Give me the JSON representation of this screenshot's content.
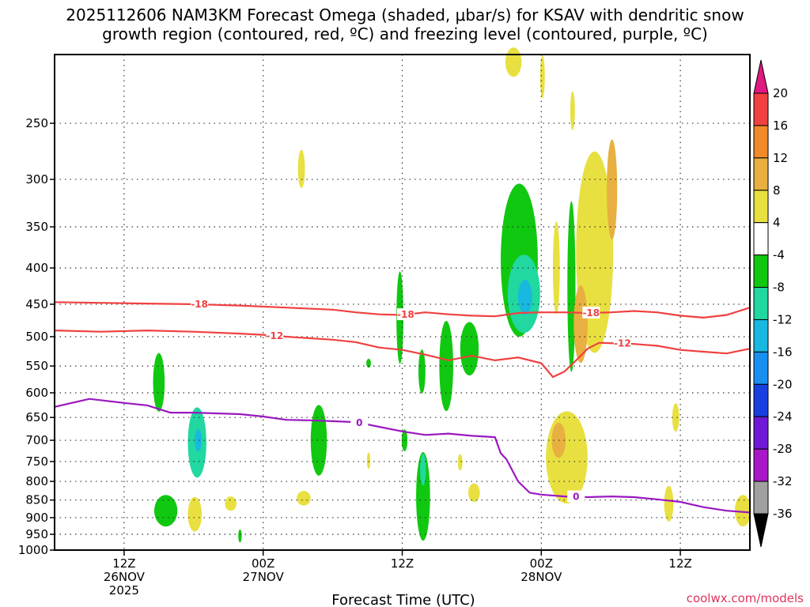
{
  "chart_data": {
    "type": "heatmap",
    "title": "2025112606 NAM3KM Forecast Omega (shaded, μbar/s) for KSAV with dendritic snow growth region (contoured, red, ºC) and freezing level (contoured, purple, ºC)",
    "title_lines": [
      "2025112606 NAM3KM Forecast Omega (shaded, μbar/s) for KSAV with dendritic snow",
      "growth region (contoured, red, ºC) and freezing level (contoured, purple, ºC)"
    ],
    "xlabel": "Forecast Time (UTC)",
    "credit": "coolwx.com/models",
    "x_range_hours": [
      0,
      60
    ],
    "y_scale": "log",
    "y_range_hpa": [
      1000,
      200
    ],
    "y_ticks": [
      250,
      300,
      350,
      400,
      450,
      500,
      550,
      600,
      650,
      700,
      750,
      800,
      850,
      900,
      950,
      1000
    ],
    "x_ticks": [
      {
        "hour": 6,
        "lines": [
          "12Z",
          "26NOV",
          "2025"
        ]
      },
      {
        "hour": 18,
        "lines": [
          "00Z",
          "27NOV"
        ]
      },
      {
        "hour": 30,
        "lines": [
          "12Z"
        ]
      },
      {
        "hour": 42,
        "lines": [
          "00Z",
          "28NOV"
        ]
      },
      {
        "hour": 54,
        "lines": [
          "12Z"
        ]
      }
    ],
    "grid": true,
    "colorbar": {
      "ticks": [
        20,
        16,
        12,
        8,
        4,
        -4,
        -8,
        -12,
        -16,
        -20,
        -24,
        -28,
        -32,
        -36
      ],
      "bands": [
        {
          "from": 16,
          "to": 20,
          "color": "#f04040"
        },
        {
          "from": 12,
          "to": 16,
          "color": "#f08a2a"
        },
        {
          "from": 8,
          "to": 12,
          "color": "#e8b040"
        },
        {
          "from": 4,
          "to": 8,
          "color": "#e8e040"
        },
        {
          "from": -4,
          "to": 4,
          "color": "#ffffff"
        },
        {
          "from": -8,
          "to": -4,
          "color": "#10c810"
        },
        {
          "from": -12,
          "to": -8,
          "color": "#20d8a0"
        },
        {
          "from": -16,
          "to": -12,
          "color": "#18b8e0"
        },
        {
          "from": -20,
          "to": -16,
          "color": "#1890f0"
        },
        {
          "from": -24,
          "to": -20,
          "color": "#1840e0"
        },
        {
          "from": -28,
          "to": -24,
          "color": "#7018d8"
        },
        {
          "from": -32,
          "to": -28,
          "color": "#a818c8"
        },
        {
          "from": -36,
          "to": -32,
          "color": "#a0a0a0"
        }
      ],
      "top_arrow_color": "#e01880",
      "bottom_arrow_color": "#000000"
    },
    "contours": [
      {
        "label": "-18",
        "color": "#f04040",
        "points": [
          [
            0,
            447
          ],
          [
            4,
            448
          ],
          [
            8,
            449
          ],
          [
            12,
            450
          ],
          [
            16,
            452
          ],
          [
            20,
            455
          ],
          [
            24,
            458
          ],
          [
            26,
            462
          ],
          [
            28,
            465
          ],
          [
            30,
            466
          ],
          [
            32,
            462
          ],
          [
            34,
            465
          ],
          [
            36,
            467
          ],
          [
            38,
            468
          ],
          [
            40,
            463
          ],
          [
            42,
            462
          ],
          [
            44,
            462
          ],
          [
            46,
            463
          ],
          [
            48,
            462
          ],
          [
            50,
            460
          ],
          [
            52,
            462
          ],
          [
            54,
            467
          ],
          [
            56,
            470
          ],
          [
            58,
            466
          ],
          [
            60,
            455
          ]
        ],
        "label_hours": [
          12.5,
          30.3,
          46.3
        ]
      },
      {
        "label": "-12",
        "color": "#f04040",
        "points": [
          [
            0,
            490
          ],
          [
            4,
            492
          ],
          [
            8,
            490
          ],
          [
            12,
            492
          ],
          [
            16,
            495
          ],
          [
            18,
            497
          ],
          [
            20,
            500
          ],
          [
            24,
            505
          ],
          [
            26,
            509
          ],
          [
            28,
            518
          ],
          [
            30,
            522
          ],
          [
            32,
            530
          ],
          [
            34,
            540
          ],
          [
            36,
            532
          ],
          [
            38,
            540
          ],
          [
            40,
            535
          ],
          [
            42,
            545
          ],
          [
            43,
            570
          ],
          [
            44,
            560
          ],
          [
            45,
            540
          ],
          [
            46,
            520
          ],
          [
            47,
            510
          ],
          [
            50,
            512
          ],
          [
            52,
            515
          ],
          [
            54,
            522
          ],
          [
            56,
            525
          ],
          [
            58,
            528
          ],
          [
            60,
            520
          ]
        ],
        "label_hours": [
          19,
          49
        ]
      },
      {
        "label": "0",
        "color": "#9a18c0",
        "points": [
          [
            0,
            628
          ],
          [
            3,
            612
          ],
          [
            6,
            620
          ],
          [
            8,
            625
          ],
          [
            10,
            640
          ],
          [
            12,
            640
          ],
          [
            16,
            643
          ],
          [
            18,
            648
          ],
          [
            20,
            655
          ],
          [
            22,
            656
          ],
          [
            24,
            658
          ],
          [
            26,
            660
          ],
          [
            28,
            670
          ],
          [
            30,
            680
          ],
          [
            32,
            688
          ],
          [
            34,
            685
          ],
          [
            36,
            690
          ],
          [
            38,
            693
          ],
          [
            38.5,
            730
          ],
          [
            39,
            745
          ],
          [
            40,
            800
          ],
          [
            41,
            830
          ],
          [
            42,
            835
          ],
          [
            44,
            840
          ],
          [
            46,
            842
          ],
          [
            48,
            840
          ],
          [
            50,
            842
          ],
          [
            52,
            848
          ],
          [
            54,
            855
          ],
          [
            56,
            870
          ],
          [
            58,
            880
          ],
          [
            60,
            885
          ]
        ],
        "label_hours": [
          26.3,
          45
        ]
      }
    ],
    "omega_shading": [
      {
        "hour": 9,
        "p": 580,
        "hw": 0.5,
        "hp": 55,
        "value": -6
      },
      {
        "hour": 12.3,
        "p": 705,
        "hw": 0.8,
        "hp": 80,
        "value": -10
      },
      {
        "hour": 12.4,
        "p": 700,
        "hw": 0.3,
        "hp": 25,
        "value": -14
      },
      {
        "hour": 9.6,
        "p": 880,
        "hw": 1.0,
        "hp": 45,
        "value": -8
      },
      {
        "hour": 12.1,
        "p": 890,
        "hw": 0.6,
        "hp": 50,
        "value": 6
      },
      {
        "hour": 15.2,
        "p": 860,
        "hw": 0.5,
        "hp": 20,
        "value": 6
      },
      {
        "hour": 16.0,
        "p": 955,
        "hw": 0.15,
        "hp": 20,
        "value": -6
      },
      {
        "hour": 21.3,
        "p": 290,
        "hw": 0.3,
        "hp": 18,
        "value": 6
      },
      {
        "hour": 22.8,
        "p": 700,
        "hw": 0.7,
        "hp": 80,
        "value": -8
      },
      {
        "hour": 21.5,
        "p": 845,
        "hw": 0.6,
        "hp": 20,
        "value": 6
      },
      {
        "hour": 27.1,
        "p": 545,
        "hw": 0.2,
        "hp": 8,
        "value": -6
      },
      {
        "hour": 27.1,
        "p": 748,
        "hw": 0.15,
        "hp": 20,
        "value": 6
      },
      {
        "hour": 29.8,
        "p": 470,
        "hw": 0.3,
        "hp": 70,
        "value": -6
      },
      {
        "hour": 30.2,
        "p": 700,
        "hw": 0.25,
        "hp": 25,
        "value": -6
      },
      {
        "hour": 31.7,
        "p": 560,
        "hw": 0.3,
        "hp": 40,
        "value": -6
      },
      {
        "hour": 31.8,
        "p": 840,
        "hw": 0.6,
        "hp": 120,
        "value": -8
      },
      {
        "hour": 31.8,
        "p": 770,
        "hw": 0.25,
        "hp": 40,
        "value": -12
      },
      {
        "hour": 33.8,
        "p": 550,
        "hw": 0.6,
        "hp": 80,
        "value": -6
      },
      {
        "hour": 35.8,
        "p": 520,
        "hw": 0.8,
        "hp": 45,
        "value": -6
      },
      {
        "hour": 35.0,
        "p": 752,
        "hw": 0.2,
        "hp": 20,
        "value": 6
      },
      {
        "hour": 36.2,
        "p": 830,
        "hw": 0.5,
        "hp": 25,
        "value": 6
      },
      {
        "hour": 40.1,
        "p": 390,
        "hw": 1.6,
        "hp": 95,
        "value": -6
      },
      {
        "hour": 40.5,
        "p": 435,
        "hw": 1.4,
        "hp": 55,
        "value": -10
      },
      {
        "hour": 40.6,
        "p": 440,
        "hw": 0.6,
        "hp": 25,
        "value": -14
      },
      {
        "hour": 39.6,
        "p": 205,
        "hw": 0.7,
        "hp": 15,
        "value": 6
      },
      {
        "hour": 42.1,
        "p": 215,
        "hw": 0.2,
        "hp": 15,
        "value": 6
      },
      {
        "hour": 43.3,
        "p": 400,
        "hw": 0.3,
        "hp": 60,
        "value": 6
      },
      {
        "hour": 44.6,
        "p": 425,
        "hw": 0.35,
        "hp": 115,
        "value": -6
      },
      {
        "hour": 44.7,
        "p": 240,
        "hw": 0.2,
        "hp": 15,
        "value": 6
      },
      {
        "hour": 46.6,
        "p": 380,
        "hw": 1.6,
        "hp": 120,
        "value": 6
      },
      {
        "hour": 45.4,
        "p": 480,
        "hw": 0.6,
        "hp": 60,
        "value": 10
      },
      {
        "hour": 48.1,
        "p": 310,
        "hw": 0.45,
        "hp": 50,
        "value": 10
      },
      {
        "hour": 44.2,
        "p": 740,
        "hw": 1.8,
        "hp": 110,
        "value": 6
      },
      {
        "hour": 43.5,
        "p": 700,
        "hw": 0.6,
        "hp": 40,
        "value": 10
      },
      {
        "hour": 53.0,
        "p": 860,
        "hw": 0.4,
        "hp": 50,
        "value": 6
      },
      {
        "hour": 53.6,
        "p": 650,
        "hw": 0.3,
        "hp": 30,
        "value": 6
      },
      {
        "hour": 59.4,
        "p": 880,
        "hw": 0.7,
        "hp": 45,
        "value": 6
      }
    ]
  }
}
